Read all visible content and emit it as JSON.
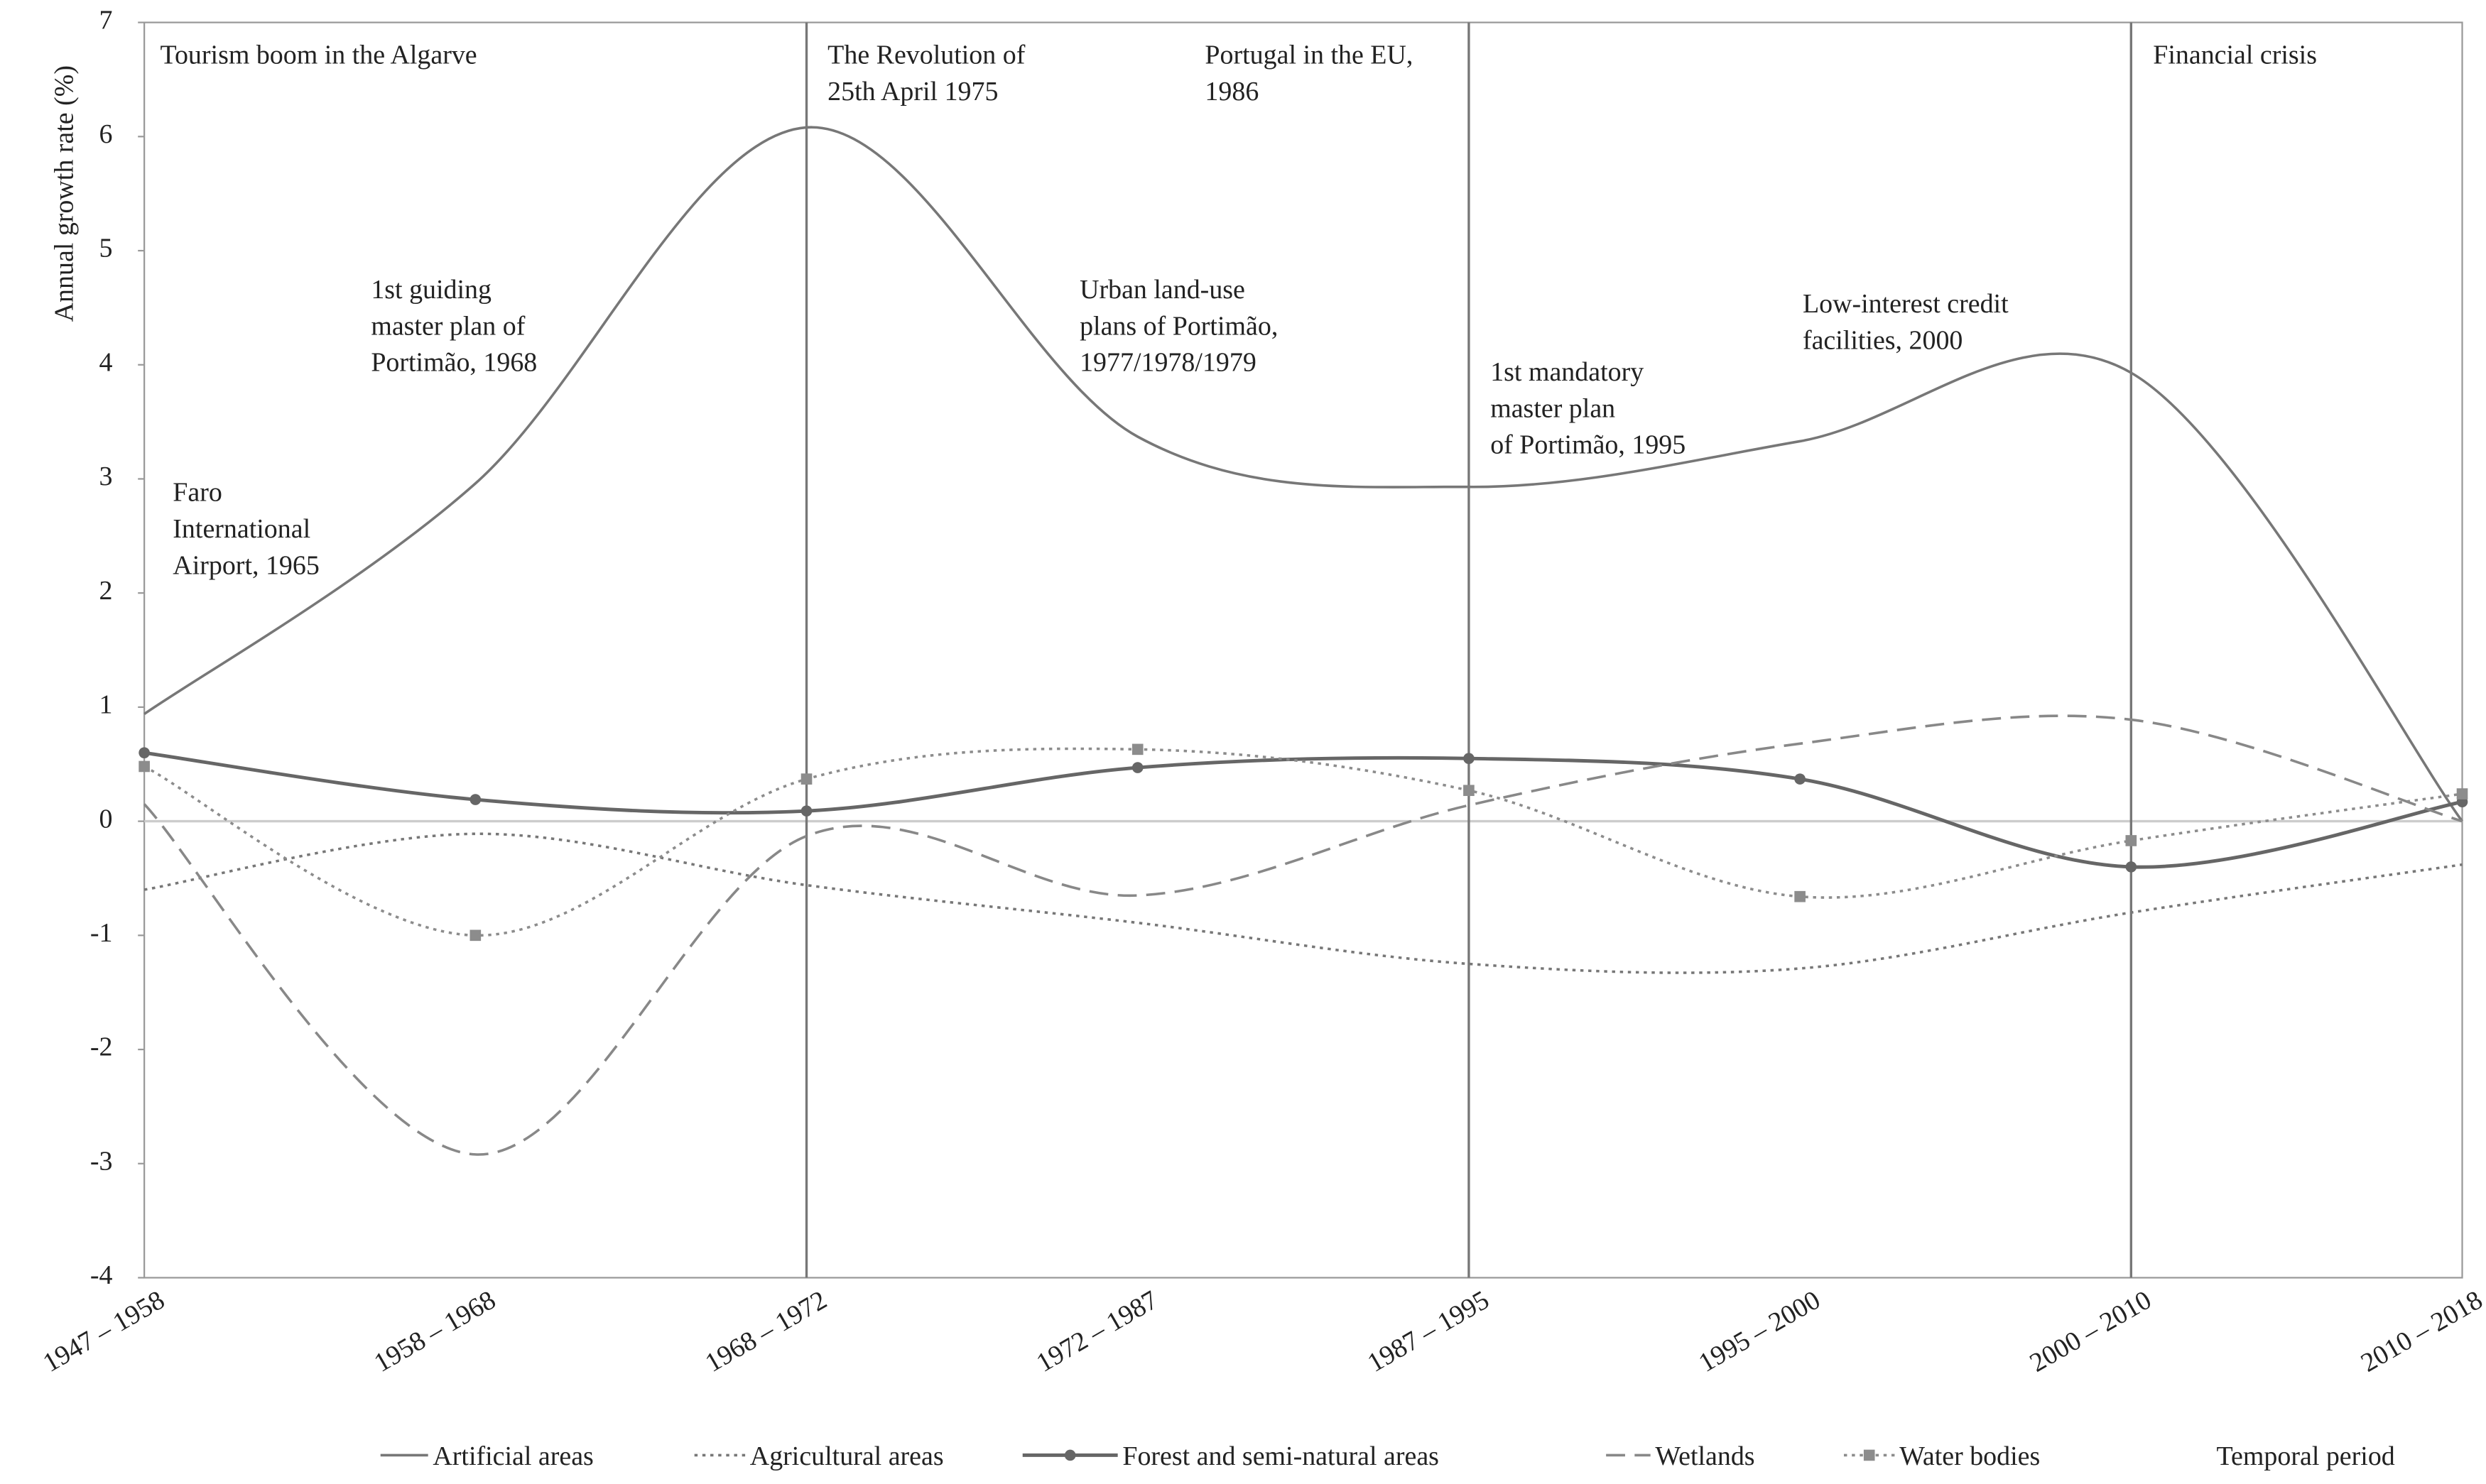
{
  "chart_data": {
    "type": "line",
    "y_label": "Annual growth rate (%)",
    "x_label": "Temporal period",
    "categories": [
      "1947 – 1958",
      "1958 – 1968",
      "1968 – 1972",
      "1972 – 1987",
      "1987 – 1995",
      "1995 – 2000",
      "2000 – 2010",
      "2010 – 2018"
    ],
    "ylim": [
      -4,
      7
    ],
    "yticks": [
      -4,
      -3,
      -2,
      -1,
      0,
      1,
      2,
      3,
      4,
      5,
      6,
      7
    ],
    "smooth": true,
    "series": [
      {
        "name": "Artificial areas",
        "color": "#777777",
        "dash": "solid",
        "marker": "none",
        "values": [
          0.94,
          2.96,
          6.08,
          3.37,
          2.93,
          3.33,
          3.93,
          0.0
        ]
      },
      {
        "name": "Agricultural areas",
        "color": "#777777",
        "dash": "dotted",
        "marker": "none",
        "values": [
          -0.6,
          -0.11,
          -0.56,
          -0.89,
          -1.25,
          -1.29,
          -0.8,
          -0.38
        ]
      },
      {
        "name": "Forest and semi-natural areas",
        "color": "#666666",
        "dash": "solid",
        "marker": "circle",
        "values": [
          0.6,
          0.19,
          0.09,
          0.47,
          0.55,
          0.37,
          -0.4,
          0.17
        ]
      },
      {
        "name": "Wetlands",
        "color": "#888888",
        "dash": "dashed",
        "marker": "none",
        "values": [
          0.15,
          -2.92,
          -0.13,
          -0.65,
          0.14,
          0.68,
          0.89,
          0.0
        ]
      },
      {
        "name": "Water bodies",
        "color": "#8c8c8c",
        "dash": "dotted",
        "marker": "square",
        "values": [
          0.48,
          -1.0,
          0.37,
          0.63,
          0.27,
          -0.66,
          -0.17,
          0.24
        ]
      }
    ],
    "event_lines": [
      "1968 – 1972",
      "1987 – 1995",
      "2000 – 2010"
    ],
    "annotations": [
      [
        "Tourism boom in the Algarve"
      ],
      [
        "Faro",
        "International",
        "Airport, 1965"
      ],
      [
        "1st guiding",
        "master plan of",
        "Portimão, 1968"
      ],
      [
        "The Revolution of",
        "25th April 1975"
      ],
      [
        "Portugal in the EU,",
        "1986"
      ],
      [
        "Urban land-use",
        "plans of Portimão,",
        "1977/1978/1979"
      ],
      [
        "1st mandatory",
        "master plan",
        "of Portimão, 1995"
      ],
      [
        "Low-interest credit",
        "facilities, 2000"
      ],
      [
        "Financial crisis"
      ]
    ]
  }
}
